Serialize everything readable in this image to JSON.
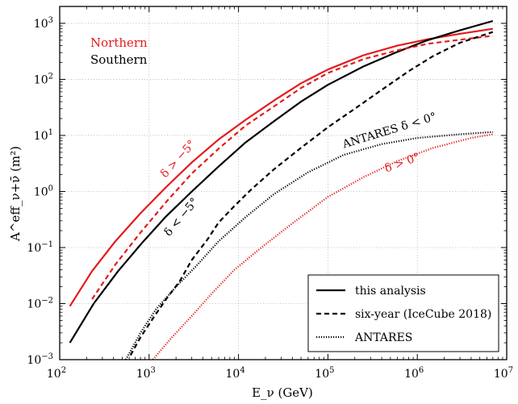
{
  "chart_data": {
    "type": "line",
    "xscale": "log",
    "yscale": "log",
    "xlim": [
      100,
      10000000
    ],
    "ylim": [
      0.001,
      2000
    ],
    "xlabel": "E_ν (GeV)",
    "ylabel": "A^eff_ν+ν̄ (m²)",
    "grid": true,
    "xticks": [
      {
        "value": 100,
        "base": "10",
        "exp": "2"
      },
      {
        "value": 1000,
        "base": "10",
        "exp": "3"
      },
      {
        "value": 10000,
        "base": "10",
        "exp": "4"
      },
      {
        "value": 100000,
        "base": "10",
        "exp": "5"
      },
      {
        "value": 1000000,
        "base": "10",
        "exp": "6"
      },
      {
        "value": 10000000,
        "base": "10",
        "exp": "7"
      }
    ],
    "yticks": [
      {
        "value": 0.001,
        "base": "10",
        "exp": "−3"
      },
      {
        "value": 0.01,
        "base": "10",
        "exp": "−2"
      },
      {
        "value": 0.1,
        "base": "10",
        "exp": "−1"
      },
      {
        "value": 1,
        "base": "10",
        "exp": "0"
      },
      {
        "value": 10,
        "base": "10",
        "exp": "1"
      },
      {
        "value": 100,
        "base": "10",
        "exp": "2"
      },
      {
        "value": 1000,
        "base": "10",
        "exp": "3"
      }
    ],
    "colors": {
      "northern": "#e41a1c",
      "southern": "#000000"
    },
    "region_labels": [
      {
        "text": "Northern",
        "color": "#e41a1c"
      },
      {
        "text": "Southern",
        "color": "#000000"
      }
    ],
    "curve_labels": [
      {
        "text": "δ > −5°",
        "color": "#e41a1c"
      },
      {
        "text": "δ < −5°",
        "color": "#000000"
      },
      {
        "text": "ANTARES δ < 0°",
        "color": "#000000"
      },
      {
        "text": "δ > 0°",
        "color": "#e41a1c"
      }
    ],
    "legend": {
      "position": "bottom-right",
      "entries": [
        {
          "label": "this analysis",
          "style": "solid"
        },
        {
          "label": "six-year (IceCube 2018)",
          "style": "dashed"
        },
        {
          "label": "ANTARES",
          "style": "dotted"
        }
      ]
    },
    "series": [
      {
        "region": "northern",
        "style": "solid",
        "x": [
          130,
          230,
          420,
          790,
          1550,
          3000,
          6000,
          12000,
          25000,
          50000,
          100000,
          250000,
          600000,
          1300000,
          3000000,
          7000000
        ],
        "y": [
          0.009,
          0.038,
          0.13,
          0.4,
          1.2,
          3.3,
          8.5,
          19,
          42,
          85,
          150,
          270,
          400,
          520,
          650,
          800
        ]
      },
      {
        "region": "southern",
        "style": "solid",
        "x": [
          130,
          240,
          450,
          830,
          1550,
          3000,
          6000,
          12000,
          25000,
          50000,
          100000,
          250000,
          600000,
          1300000,
          3000000,
          7000000
        ],
        "y": [
          0.002,
          0.01,
          0.038,
          0.12,
          0.36,
          1.0,
          2.8,
          7.5,
          18,
          40,
          80,
          170,
          310,
          500,
          750,
          1100
        ]
      },
      {
        "region": "northern",
        "style": "dashed",
        "x": [
          230,
          420,
          790,
          1550,
          3000,
          6000,
          12000,
          25000,
          50000,
          100000,
          250000,
          600000,
          1300000,
          3000000,
          7000000
        ],
        "y": [
          0.012,
          0.05,
          0.18,
          0.65,
          2.1,
          5.8,
          15,
          33,
          70,
          130,
          230,
          330,
          430,
          510,
          600
        ]
      },
      {
        "region": "southern",
        "style": "dashed",
        "x": [
          620,
          800,
          1150,
          1550,
          2200,
          3000,
          4500,
          6000,
          9000,
          14000,
          25000,
          50000,
          100000,
          200000,
          400000,
          800000,
          1500000,
          3000000,
          7000000
        ],
        "y": [
          0.0012,
          0.0025,
          0.006,
          0.012,
          0.025,
          0.06,
          0.14,
          0.28,
          0.55,
          1.1,
          2.5,
          6,
          14,
          30,
          65,
          140,
          260,
          450,
          700
        ]
      },
      {
        "region": "southern",
        "style": "dotted",
        "x": [
          550,
          800,
          1200,
          2000,
          3500,
          6000,
          12000,
          25000,
          60000,
          150000,
          400000,
          1000000,
          3000000,
          7000000
        ],
        "y": [
          0.001,
          0.003,
          0.008,
          0.02,
          0.05,
          0.13,
          0.35,
          0.9,
          2.2,
          4.5,
          7.0,
          9.0,
          10.5,
          11.5
        ]
      },
      {
        "region": "northern",
        "style": "dotted",
        "x": [
          1100,
          1800,
          3000,
          5000,
          9000,
          18000,
          40000,
          100000,
          250000,
          600000,
          1500000,
          4000000,
          7000000
        ],
        "y": [
          0.001,
          0.0025,
          0.006,
          0.015,
          0.04,
          0.1,
          0.27,
          0.8,
          1.8,
          3.5,
          6.0,
          9.0,
          10.5
        ]
      }
    ]
  }
}
